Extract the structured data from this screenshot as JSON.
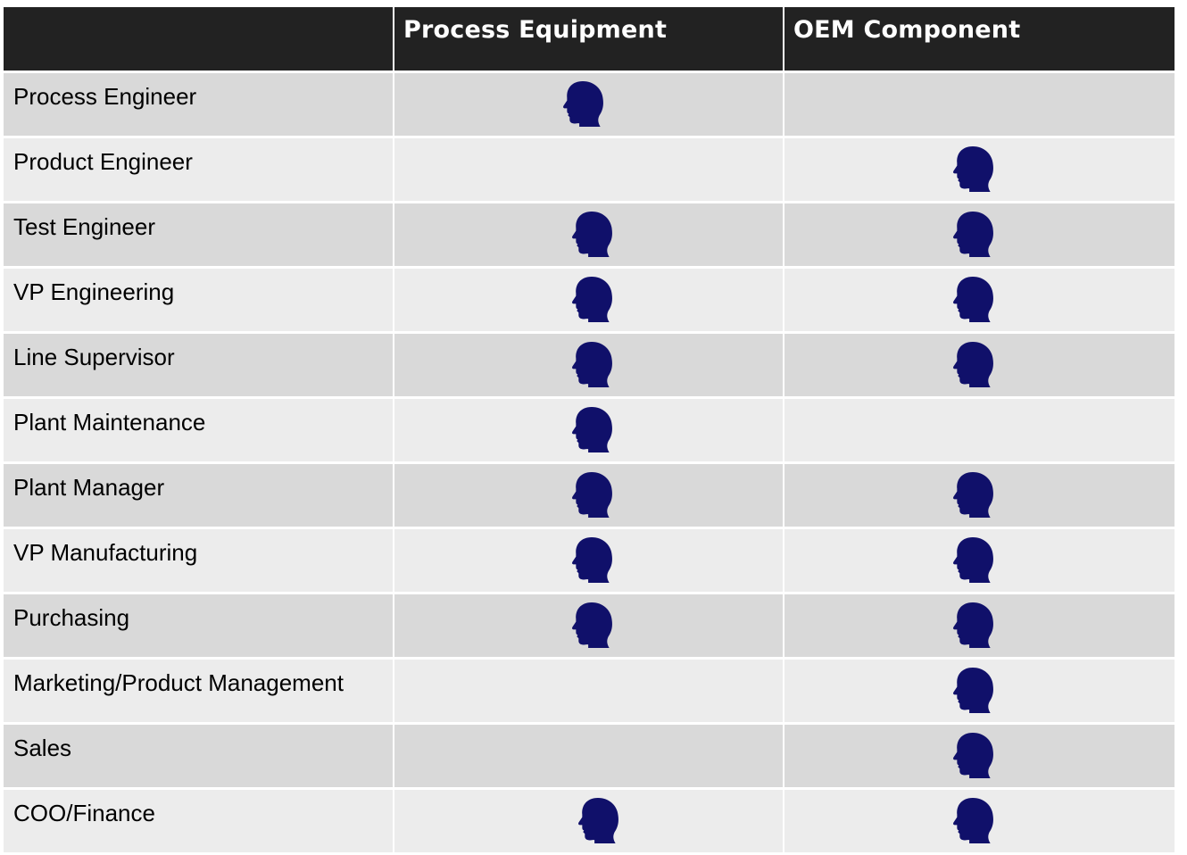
{
  "table": {
    "corner_label": "",
    "columns": [
      "Process Equipment",
      "OEM Component"
    ],
    "rows": [
      {
        "role": "Process Engineer",
        "marks": [
          true,
          false
        ]
      },
      {
        "role": "Product Engineer",
        "marks": [
          false,
          true
        ]
      },
      {
        "role": "Test Engineer",
        "marks": [
          true,
          true
        ]
      },
      {
        "role": "VP Engineering",
        "marks": [
          true,
          true
        ]
      },
      {
        "role": "Line Supervisor",
        "marks": [
          true,
          true
        ]
      },
      {
        "role": "Plant Maintenance",
        "marks": [
          true,
          false
        ]
      },
      {
        "role": "Plant Manager",
        "marks": [
          true,
          true
        ]
      },
      {
        "role": "VP Manufacturing",
        "marks": [
          true,
          true
        ]
      },
      {
        "role": "Purchasing",
        "marks": [
          true,
          true
        ]
      },
      {
        "role": "Marketing/Product Management",
        "marks": [
          false,
          true
        ]
      },
      {
        "role": "Sales",
        "marks": [
          false,
          true
        ]
      },
      {
        "role": "COO/Finance",
        "marks": [
          true,
          true
        ]
      }
    ]
  },
  "icon": {
    "name": "person-head-icon",
    "color": "#10106a"
  },
  "colors": {
    "header_bg": "#222222",
    "header_text": "#ffffff",
    "row_odd": "#d9d9d9",
    "row_even": "#ececec"
  }
}
